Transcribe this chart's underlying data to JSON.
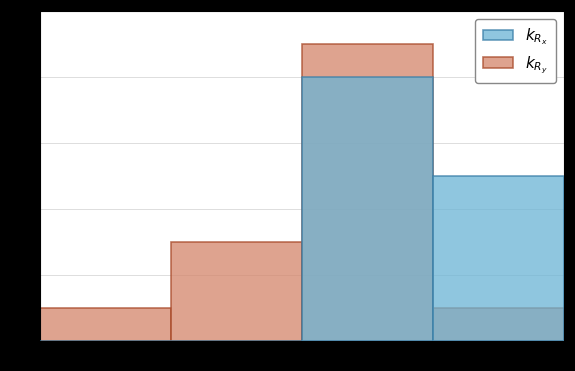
{
  "title": "",
  "xlabel": "",
  "ylabel": "",
  "kRx_values": [
    0,
    0,
    8,
    5
  ],
  "kRy_values": [
    1,
    3,
    9,
    1
  ],
  "bin_edges": [
    0,
    1,
    2,
    3,
    4
  ],
  "kRx_color": "#6ab4d5",
  "kRy_color": "#d4856a",
  "kRx_edge_color": "#3a7fa8",
  "kRy_edge_color": "#a84a2a",
  "alpha": 0.75,
  "ylim": [
    0,
    10
  ],
  "yticks": [
    0,
    2,
    4,
    6,
    8,
    10
  ],
  "grid": true,
  "legend_kRx": "$k_{R_x}$",
  "legend_kRy": "$k_{R_y}$",
  "bar_width": 1.0
}
